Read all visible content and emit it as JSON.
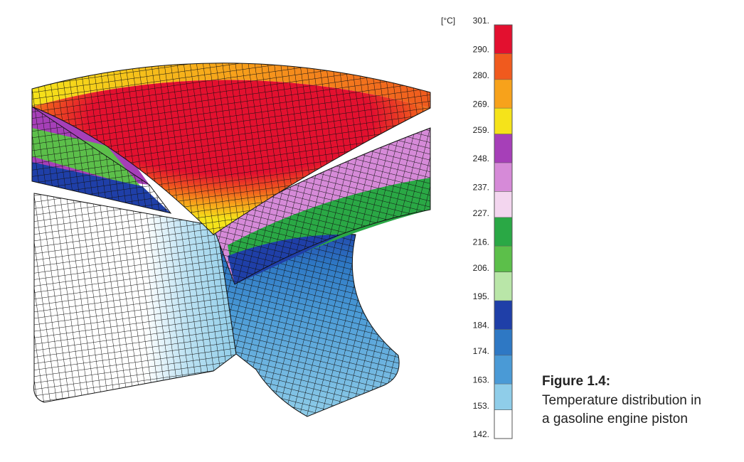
{
  "colorbar": {
    "unit": "[°C]",
    "ticks": [
      {
        "value": 301,
        "label": "301."
      },
      {
        "value": 290,
        "label": "290."
      },
      {
        "value": 280,
        "label": "280."
      },
      {
        "value": 269,
        "label": "269."
      },
      {
        "value": 259,
        "label": "259."
      },
      {
        "value": 248,
        "label": "248."
      },
      {
        "value": 237,
        "label": "237."
      },
      {
        "value": 227,
        "label": "227."
      },
      {
        "value": 216,
        "label": "216."
      },
      {
        "value": 206,
        "label": "206."
      },
      {
        "value": 195,
        "label": "195."
      },
      {
        "value": 184,
        "label": "184."
      },
      {
        "value": 174,
        "label": "174."
      },
      {
        "value": 163,
        "label": "163."
      },
      {
        "value": 153,
        "label": "153."
      },
      {
        "value": 142,
        "label": "142."
      }
    ],
    "colors": [
      "#e3102f",
      "#f05a1e",
      "#f7a21b",
      "#f5e31a",
      "#a63fb8",
      "#d68ad8",
      "#f3d6ef",
      "#2aa845",
      "#5cbf4a",
      "#b9e6a8",
      "#1f3fa8",
      "#2e78c4",
      "#4a9ad6",
      "#8fcde9",
      "#ffffff"
    ]
  },
  "caption": {
    "title": "Figure 1.4:",
    "lines": [
      "Temperature distribution in",
      "a gasoline engine piston"
    ]
  }
}
